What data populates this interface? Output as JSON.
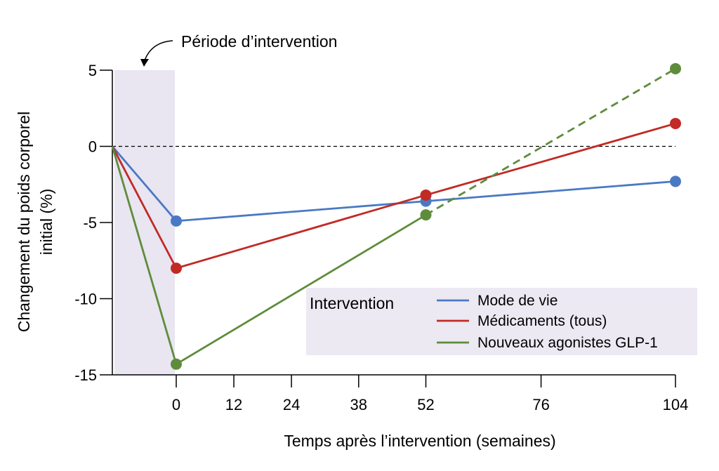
{
  "chart_data": {
    "type": "line",
    "title": "",
    "xlabel": "Temps après l’intervention (semaines)",
    "ylabel_lines": [
      "Changement du poids corporel",
      "initial  (%)"
    ],
    "x_ticks": [
      0,
      12,
      24,
      38,
      52,
      76,
      104
    ],
    "y_ticks": [
      5,
      0,
      -5,
      -10,
      -15
    ],
    "ylim": [
      -15,
      5
    ],
    "intervention_period_label": "Période d’intervention",
    "legend": {
      "title": "Intervention",
      "placement": "bottom-right"
    },
    "series": [
      {
        "name": "Mode de vie",
        "color": "#4a79c4",
        "points": [
          {
            "x": "start",
            "y": 0,
            "marker": false
          },
          {
            "x": 0,
            "y": -4.9,
            "marker": true
          },
          {
            "x": 52,
            "y": -3.6,
            "marker": true
          },
          {
            "x": 104,
            "y": -2.3,
            "marker": true
          }
        ],
        "dashed_from_index": null
      },
      {
        "name": "Médicaments (tous)",
        "color": "#c12a25",
        "points": [
          {
            "x": "start",
            "y": 0,
            "marker": false
          },
          {
            "x": 0,
            "y": -8.0,
            "marker": true
          },
          {
            "x": 52,
            "y": -3.2,
            "marker": true
          },
          {
            "x": 104,
            "y": 1.5,
            "marker": true
          }
        ],
        "dashed_from_index": null
      },
      {
        "name": "Nouveaux agonistes GLP-1",
        "color": "#5e8c3c",
        "points": [
          {
            "x": "start",
            "y": 0,
            "marker": false
          },
          {
            "x": 0,
            "y": -14.3,
            "marker": true
          },
          {
            "x": 52,
            "y": -4.5,
            "marker": true
          },
          {
            "x": 104,
            "y": 5.1,
            "marker": true
          }
        ],
        "dashed_from_index": 2
      }
    ],
    "colors": {
      "period_shade": "#e9e5f1",
      "legend_bg": "#ece9f3",
      "zero_line": "#000000"
    }
  }
}
